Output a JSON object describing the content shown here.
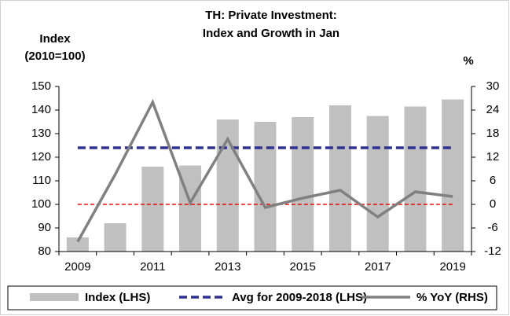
{
  "chart_data": {
    "type": "bar_line",
    "title": "TH: Private Investment:",
    "subtitle": "Index and Growth in Jan",
    "y_label": "Index",
    "y_label_unit": "(2010=100)",
    "y2_label": "%",
    "categories": [
      "2009",
      null,
      "2011",
      null,
      "2013",
      null,
      "2015",
      null,
      "2017",
      null,
      "2019"
    ],
    "series": [
      {
        "name": "Index (LHS)",
        "color": "#c0c0c0",
        "values": [
          86,
          92,
          116,
          116.5,
          136,
          135,
          137,
          142,
          137.5,
          141.5,
          144.5
        ]
      },
      {
        "name": "% YoY (RHS)",
        "color": "#808080",
        "axis": "y2",
        "values": [
          -9.5,
          7.6,
          26,
          0.4,
          16.6,
          -0.8,
          1.6,
          3.6,
          -3.2,
          3.2,
          2
        ]
      }
    ],
    "avg_line": {
      "name": "Avg for 2009-2018 (LHS)",
      "color": "#2e3192",
      "value": 124
    },
    "reference_line": {
      "color": "#ff0000",
      "value": 100
    },
    "ylim": [
      80,
      150
    ],
    "yticks": [
      80,
      90,
      100,
      110,
      120,
      130,
      140,
      150
    ],
    "y2lim": [
      -12,
      30
    ],
    "y2ticks": [
      -12,
      -6,
      0,
      6,
      12,
      18,
      24,
      30
    ],
    "legend": "bottom"
  }
}
